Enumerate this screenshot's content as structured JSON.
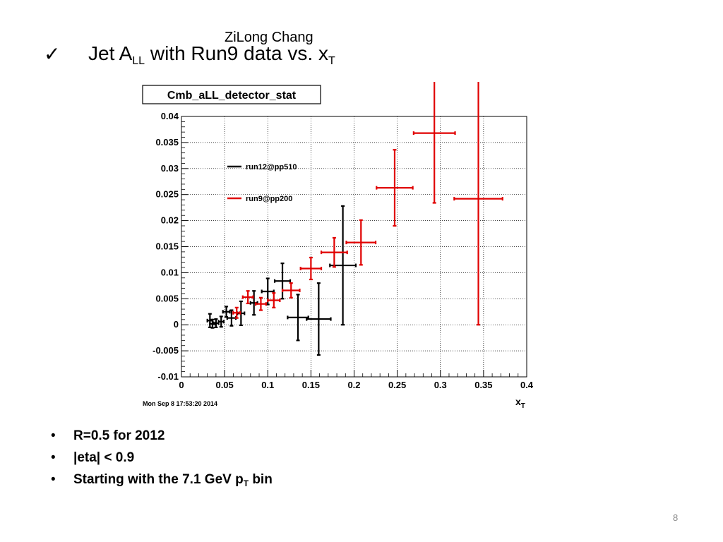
{
  "slide": {
    "author": "ZiLong Chang",
    "check_glyph": "✓",
    "title_pre": "Jet A",
    "title_sub": "LL",
    "title_mid": " with Run9 data vs. x",
    "title_sub2": "T",
    "bullet_glyph": "•",
    "bullets": [
      {
        "text": "R=0.5 for 2012"
      },
      {
        "text": "|eta| < 0.9"
      },
      {
        "text_pre": "Starting with the 7.1 GeV p",
        "sub": "T",
        "text_post": " bin"
      }
    ],
    "page_number": "8"
  },
  "chart_data": {
    "type": "scatter",
    "title": "Cmb_aLL_detector_stat",
    "xlabel": "x",
    "xlabel_sub": "T",
    "ylabel": "",
    "xlim": [
      0,
      0.4
    ],
    "ylim": [
      -0.01,
      0.04
    ],
    "x_ticks": [
      "0",
      "0.05",
      "0.1",
      "0.15",
      "0.2",
      "0.25",
      "0.3",
      "0.35",
      "0.4"
    ],
    "y_ticks": [
      "-0.01",
      "-0.005",
      "0",
      "0.005",
      "0.01",
      "0.015",
      "0.02",
      "0.025",
      "0.03",
      "0.035",
      "0.04"
    ],
    "grid": true,
    "timestamp": "Mon Sep  8 17:53:20 2014",
    "legend": {
      "placement": "top-left"
    },
    "series": [
      {
        "name": "run12@pp510",
        "color": "#000000",
        "points": [
          {
            "x": 0.033,
            "y": 0.0008,
            "xerr": 0.003,
            "yerr": 0.0013
          },
          {
            "x": 0.036,
            "y": 0.0002,
            "xerr": 0.003,
            "yerr": 0.0008
          },
          {
            "x": 0.04,
            "y": 0.0003,
            "xerr": 0.003,
            "yerr": 0.0008
          },
          {
            "x": 0.046,
            "y": 0.0006,
            "xerr": 0.003,
            "yerr": 0.001
          },
          {
            "x": 0.052,
            "y": 0.0025,
            "xerr": 0.004,
            "yerr": 0.001
          },
          {
            "x": 0.058,
            "y": 0.0013,
            "xerr": 0.005,
            "yerr": 0.0015
          },
          {
            "x": 0.069,
            "y": 0.0022,
            "xerr": 0.004,
            "yerr": 0.0023
          },
          {
            "x": 0.084,
            "y": 0.0042,
            "xerr": 0.004,
            "yerr": 0.0023
          },
          {
            "x": 0.1,
            "y": 0.0064,
            "xerr": 0.007,
            "yerr": 0.0025
          },
          {
            "x": 0.117,
            "y": 0.0084,
            "xerr": 0.009,
            "yerr": 0.0034
          },
          {
            "x": 0.135,
            "y": 0.0014,
            "xerr": 0.012,
            "yerr": 0.0044
          },
          {
            "x": 0.159,
            "y": 0.0011,
            "xerr": 0.014,
            "yerr": 0.0069
          },
          {
            "x": 0.187,
            "y": 0.0114,
            "xerr": 0.015,
            "yerr": 0.0114
          }
        ]
      },
      {
        "name": "run9@pp200",
        "color": "#e00000",
        "points": [
          {
            "x": 0.064,
            "y": 0.0023,
            "xerr": 0.004,
            "yerr": 0.001
          },
          {
            "x": 0.077,
            "y": 0.0053,
            "xerr": 0.006,
            "yerr": 0.0012
          },
          {
            "x": 0.092,
            "y": 0.004,
            "xerr": 0.006,
            "yerr": 0.0012
          },
          {
            "x": 0.107,
            "y": 0.0047,
            "xerr": 0.007,
            "yerr": 0.0014
          },
          {
            "x": 0.127,
            "y": 0.0066,
            "xerr": 0.01,
            "yerr": 0.0014
          },
          {
            "x": 0.15,
            "y": 0.0108,
            "xerr": 0.012,
            "yerr": 0.0021
          },
          {
            "x": 0.177,
            "y": 0.0139,
            "xerr": 0.015,
            "yerr": 0.0028
          },
          {
            "x": 0.208,
            "y": 0.0158,
            "xerr": 0.017,
            "yerr": 0.0043
          },
          {
            "x": 0.247,
            "y": 0.0263,
            "xerr": 0.021,
            "yerr": 0.0073
          },
          {
            "x": 0.293,
            "y": 0.0368,
            "xerr": 0.024,
            "yerr": 0.0134
          },
          {
            "x": 0.344,
            "y": 0.0242,
            "xerr": 0.028,
            "yerr": 0.0242
          }
        ]
      }
    ]
  }
}
